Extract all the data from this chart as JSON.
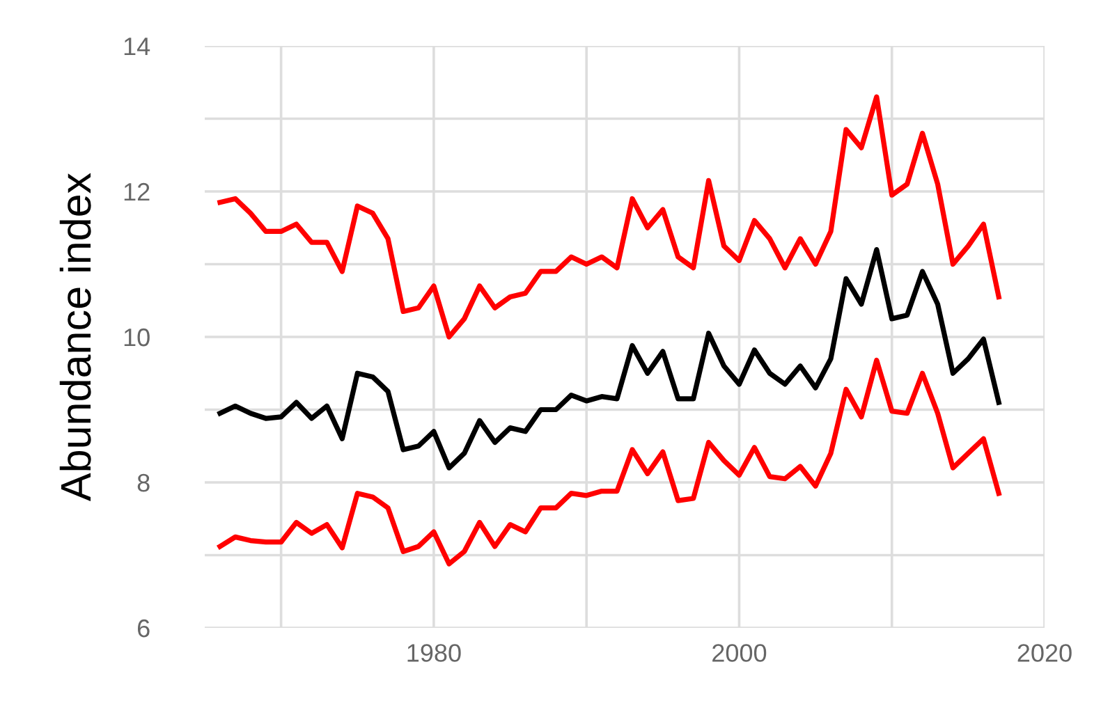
{
  "chart_data": {
    "type": "line",
    "ylabel": "Abundance index",
    "x": [
      1966,
      1967,
      1968,
      1969,
      1970,
      1971,
      1972,
      1973,
      1974,
      1975,
      1976,
      1977,
      1978,
      1979,
      1980,
      1981,
      1982,
      1983,
      1984,
      1985,
      1986,
      1987,
      1988,
      1989,
      1990,
      1991,
      1992,
      1993,
      1994,
      1995,
      1996,
      1997,
      1998,
      1999,
      2000,
      2001,
      2002,
      2003,
      2004,
      2005,
      2006,
      2007,
      2008,
      2009,
      2010,
      2011,
      2012,
      2013,
      2014,
      2015,
      2016,
      2017
    ],
    "series": [
      {
        "color": "#ff0000",
        "values": [
          11.85,
          11.9,
          11.7,
          11.45,
          11.45,
          11.55,
          11.3,
          11.3,
          10.9,
          11.8,
          11.7,
          11.35,
          10.35,
          10.4,
          10.7,
          10.0,
          10.25,
          10.7,
          10.4,
          10.55,
          10.6,
          10.9,
          10.9,
          11.1,
          11.0,
          11.1,
          10.95,
          11.9,
          11.5,
          11.75,
          11.1,
          10.95,
          12.15,
          11.25,
          11.05,
          11.6,
          11.35,
          10.95,
          11.35,
          11.0,
          11.45,
          12.85,
          12.6,
          13.3,
          11.95,
          12.1,
          12.8,
          12.1,
          11.0,
          11.25,
          11.55,
          10.55
        ]
      },
      {
        "color": "#000000",
        "values": [
          8.95,
          9.05,
          8.95,
          8.88,
          8.9,
          9.1,
          8.88,
          9.05,
          8.6,
          9.5,
          9.45,
          9.25,
          8.45,
          8.5,
          8.7,
          8.2,
          8.4,
          8.85,
          8.55,
          8.75,
          8.7,
          9.0,
          9.0,
          9.2,
          9.12,
          9.18,
          9.15,
          9.88,
          9.5,
          9.8,
          9.15,
          9.15,
          10.05,
          9.6,
          9.35,
          9.82,
          9.5,
          9.35,
          9.6,
          9.3,
          9.7,
          10.8,
          10.45,
          11.2,
          10.25,
          10.3,
          10.9,
          10.45,
          9.5,
          9.7,
          9.97,
          9.1
        ]
      },
      {
        "color": "#ff0000",
        "values": [
          7.12,
          7.25,
          7.2,
          7.18,
          7.18,
          7.45,
          7.3,
          7.42,
          7.1,
          7.85,
          7.8,
          7.65,
          7.05,
          7.12,
          7.32,
          6.88,
          7.05,
          7.45,
          7.12,
          7.42,
          7.32,
          7.65,
          7.65,
          7.85,
          7.82,
          7.88,
          7.88,
          8.45,
          8.12,
          8.42,
          7.75,
          7.78,
          8.55,
          8.3,
          8.1,
          8.48,
          8.08,
          8.05,
          8.22,
          7.95,
          8.4,
          9.28,
          8.9,
          9.68,
          8.98,
          8.95,
          9.5,
          8.95,
          8.2,
          8.4,
          8.6,
          7.85
        ]
      }
    ],
    "xlim": [
      1965,
      2020
    ],
    "xticks": [
      {
        "value": 1970,
        "label": null
      },
      1980,
      {
        "value": 1990,
        "label": null
      },
      2000,
      {
        "value": 2010,
        "label": null
      },
      2020
    ],
    "ylim": [
      6,
      14
    ],
    "yticks": [
      6,
      {
        "value": 7,
        "label": null
      },
      8,
      {
        "value": 9,
        "label": null
      },
      10,
      {
        "value": 11,
        "label": null
      },
      12,
      {
        "value": 13,
        "label": null
      },
      14
    ],
    "grid": true,
    "line_style": "solid",
    "marker": "none"
  }
}
